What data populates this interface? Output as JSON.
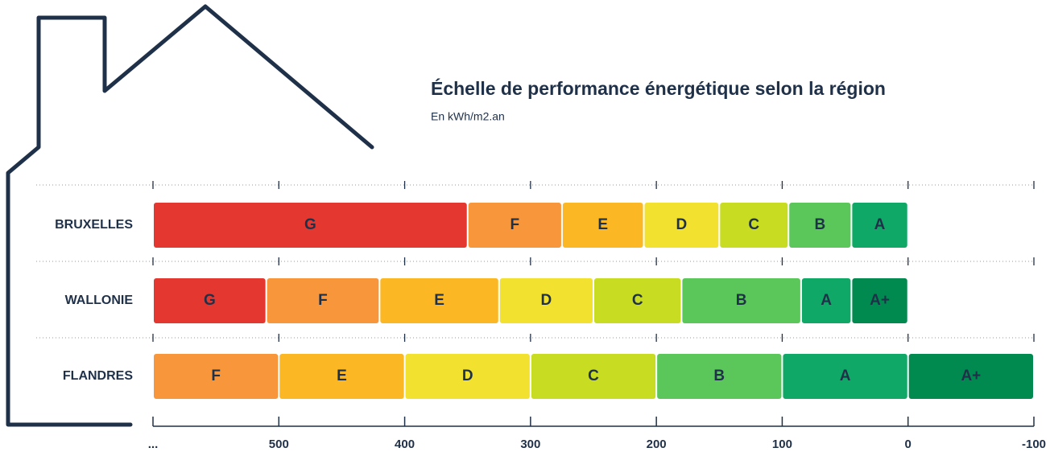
{
  "chart_data": {
    "type": "range-bar",
    "title": "Échelle de performance énergétique selon la région",
    "subtitle": "En kWh/m2.an",
    "xlim": [
      600,
      -100
    ],
    "xticks": [
      {
        "value": 600,
        "label": "..."
      },
      500,
      400,
      300,
      200,
      100,
      0,
      -100
    ],
    "series": [
      {
        "name": "BRUXELLES",
        "segments": [
          {
            "label": "G",
            "from": 600,
            "to": 350,
            "color": "#e3372f"
          },
          {
            "label": "F",
            "from": 350,
            "to": 275,
            "color": "#f7963a"
          },
          {
            "label": "E",
            "from": 275,
            "to": 210,
            "color": "#fbb824"
          },
          {
            "label": "D",
            "from": 210,
            "to": 150,
            "color": "#f2e12e"
          },
          {
            "label": "C",
            "from": 150,
            "to": 95,
            "color": "#c8dc21"
          },
          {
            "label": "B",
            "from": 95,
            "to": 45,
            "color": "#5bc75a"
          },
          {
            "label": "A",
            "from": 45,
            "to": 0,
            "color": "#10a866"
          }
        ]
      },
      {
        "name": "WALLONIE",
        "segments": [
          {
            "label": "G",
            "from": 600,
            "to": 510,
            "color": "#e3372f"
          },
          {
            "label": "F",
            "from": 510,
            "to": 420,
            "color": "#f7963a"
          },
          {
            "label": "E",
            "from": 420,
            "to": 325,
            "color": "#fbb824"
          },
          {
            "label": "D",
            "from": 325,
            "to": 250,
            "color": "#f2e12e"
          },
          {
            "label": "C",
            "from": 250,
            "to": 180,
            "color": "#c8dc21"
          },
          {
            "label": "B",
            "from": 180,
            "to": 85,
            "color": "#5bc75a"
          },
          {
            "label": "A",
            "from": 85,
            "to": 45,
            "color": "#10a866"
          },
          {
            "label": "A+",
            "from": 45,
            "to": 0,
            "color": "#008a4f"
          }
        ]
      },
      {
        "name": "FLANDRES",
        "segments": [
          {
            "label": "F",
            "from": 600,
            "to": 500,
            "color": "#f7963a"
          },
          {
            "label": "E",
            "from": 500,
            "to": 400,
            "color": "#fbb824"
          },
          {
            "label": "D",
            "from": 400,
            "to": 300,
            "color": "#f2e12e"
          },
          {
            "label": "C",
            "from": 300,
            "to": 200,
            "color": "#c8dc21"
          },
          {
            "label": "B",
            "from": 200,
            "to": 100,
            "color": "#5bc75a"
          },
          {
            "label": "A",
            "from": 100,
            "to": 0,
            "color": "#10a866"
          },
          {
            "label": "A+",
            "from": 0,
            "to": -100,
            "color": "#008a4f"
          }
        ]
      }
    ]
  }
}
